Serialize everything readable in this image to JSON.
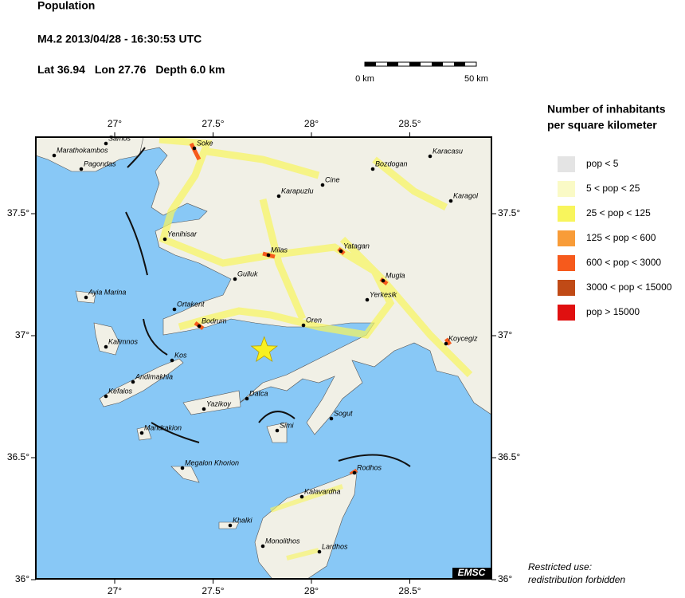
{
  "header": {
    "title": "Population",
    "event": "M4.2  2013/04/28 - 16:30:53 UTC",
    "lat_label": "Lat",
    "lat": 36.94,
    "lon_label": "Lon",
    "lon": 27.76,
    "depth_label": "Depth",
    "depth": "6.0 km"
  },
  "scale_bar": {
    "labels": [
      "0 km",
      "50 km"
    ]
  },
  "map": {
    "lon_ticks": [
      {
        "value": 27,
        "label": "27°"
      },
      {
        "value": 27.5,
        "label": "27.5°"
      },
      {
        "value": 28,
        "label": "28°"
      },
      {
        "value": 28.5,
        "label": "28.5°"
      }
    ],
    "lat_ticks": [
      {
        "value": 37.5,
        "label": "37.5°"
      },
      {
        "value": 37,
        "label": "37°"
      },
      {
        "value": 36.5,
        "label": "36.5°"
      },
      {
        "value": 36,
        "label": "36°"
      }
    ],
    "places": [
      "Samos",
      "Marathokambos",
      "Pagondas",
      "Soke",
      "Karacasu",
      "Bozdogan",
      "Cine",
      "Karapuzlu",
      "Karagol",
      "Yenihisar",
      "Milas",
      "Yatagan",
      "Gulluk",
      "Mugla",
      "Ayia Marina",
      "Ortakent",
      "Yerkesik",
      "Bodrum",
      "Oren",
      "Koycegiz",
      "Kalimnos",
      "Kos",
      "Andimakhia",
      "Kefalos",
      "Datca",
      "Yazikoy",
      "Sogut",
      "Simi",
      "Mandrakion",
      "Megalon Khorion",
      "Rodhos",
      "Kalavardha",
      "Khalki",
      "Monolithos",
      "Lardhos"
    ],
    "logo": "EMSC"
  },
  "legend": {
    "title": [
      "Number of inhabitants",
      "per square kilometer"
    ],
    "entries": [
      {
        "label": "pop < 5",
        "color": "#e4e4e4"
      },
      {
        "label": "5 < pop < 25",
        "color": "#fafac6"
      },
      {
        "label": "25 < pop < 125",
        "color": "#f8f55c"
      },
      {
        "label": "125 < pop < 600",
        "color": "#f89c38"
      },
      {
        "label": "600 < pop < 3000",
        "color": "#f65a1c"
      },
      {
        "label": "3000 < pop < 15000",
        "color": "#c04a16"
      },
      {
        "label": "pop > 15000",
        "color": "#e01010"
      }
    ]
  },
  "footer": [
    "Restricted use:",
    "redistribution forbidden"
  ]
}
